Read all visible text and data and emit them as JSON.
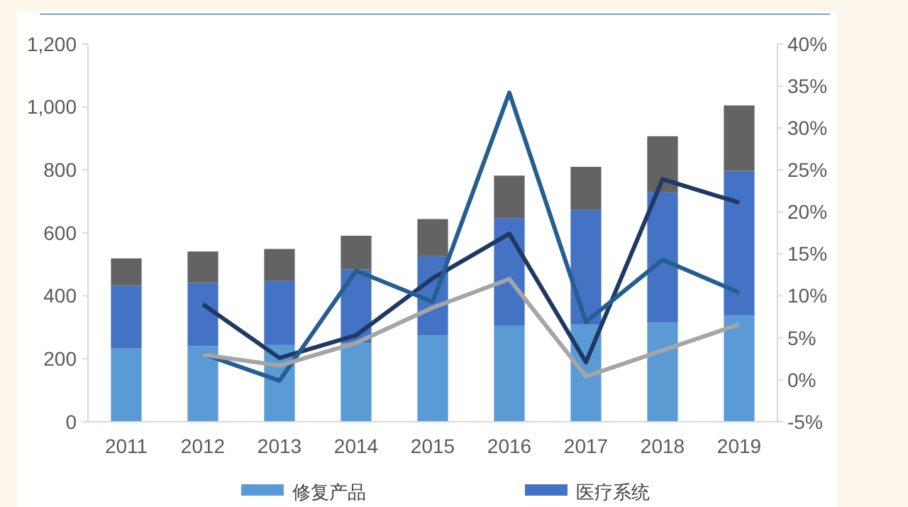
{
  "chart_data": {
    "type": "bar",
    "stacked": true,
    "categories": [
      "2011",
      "2012",
      "2013",
      "2014",
      "2015",
      "2016",
      "2017",
      "2018",
      "2019"
    ],
    "series": [
      {
        "name": "修复产品",
        "color": "#5b9bd5",
        "values": [
          233,
          241,
          244,
          250,
          274,
          305,
          308,
          316,
          338
        ]
      },
      {
        "name": "医疗系统",
        "color": "#4472c4",
        "values": [
          199,
          200,
          203,
          234,
          252,
          342,
          366,
          413,
          459
        ]
      },
      {
        "color": "#636363",
        "values": [
          87,
          100,
          102,
          107,
          118,
          135,
          136,
          178,
          208
        ]
      },
      {
        "type": "line",
        "axis": "y2",
        "color": "#1f3864",
        "values": [
          null,
          9.0,
          2.6,
          5.3,
          12.1,
          17.4,
          2.1,
          23.9,
          21.1
        ]
      },
      {
        "type": "line",
        "axis": "y2",
        "color": "#255e91",
        "values": [
          null,
          3.1,
          -0.1,
          13.0,
          9.3,
          34.2,
          6.9,
          14.3,
          10.4
        ]
      },
      {
        "type": "line",
        "axis": "y2",
        "color": "#a5a5a5",
        "values": [
          null,
          3.0,
          1.7,
          4.4,
          8.6,
          12.0,
          0.4,
          3.5,
          6.6
        ]
      }
    ],
    "ylim": [
      0,
      1200
    ],
    "yticks": [
      0,
      200,
      400,
      600,
      800,
      {
        "value": 1000,
        "label": "1,000"
      },
      {
        "value": 1200,
        "label": "1,200"
      }
    ],
    "y2lim": [
      -5,
      40
    ],
    "y2ticks": [
      {
        "value": -5,
        "label": "-5%"
      },
      {
        "value": 0,
        "label": "0%"
      },
      {
        "value": 5,
        "label": "5%"
      },
      {
        "value": 10,
        "label": "10%"
      },
      {
        "value": 15,
        "label": "15%"
      },
      {
        "value": 20,
        "label": "20%"
      },
      {
        "value": 25,
        "label": "25%"
      },
      {
        "value": 30,
        "label": "30%"
      },
      {
        "value": 35,
        "label": "35%"
      },
      {
        "value": 40,
        "label": "40%"
      }
    ],
    "grid": false,
    "legend": "bottom",
    "line_style": "solid",
    "marker": "none"
  }
}
